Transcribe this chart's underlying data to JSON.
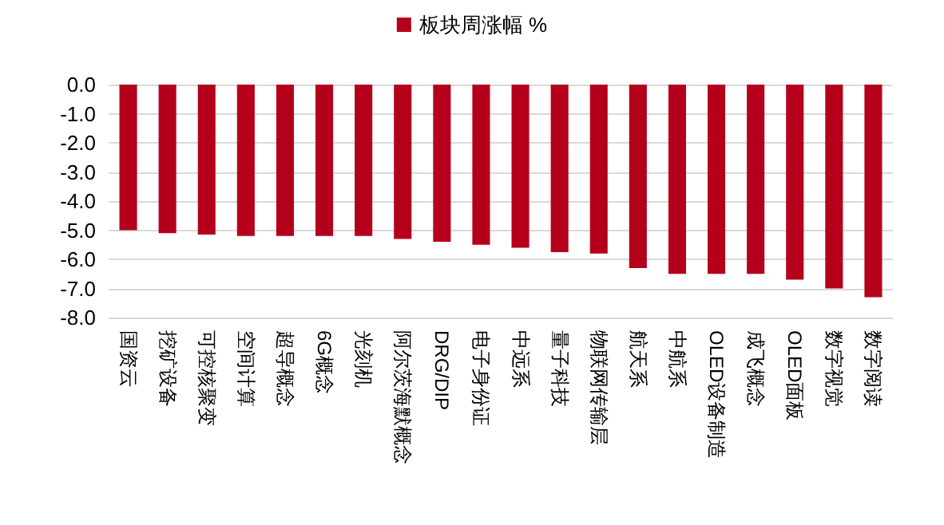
{
  "chart_data": {
    "type": "bar",
    "categories": [
      "国资云",
      "挖矿设备",
      "可控核聚变",
      "空间计算",
      "超导概念",
      "6G概念",
      "光刻机",
      "阿尔茨海默概念",
      "DRG/DIP",
      "电子身份证",
      "中远系",
      "量子科技",
      "物联网传输层",
      "航天系",
      "中航系",
      "OLED设备制造",
      "成飞概念",
      "OLED面板",
      "数字视觉",
      "数字阅读"
    ],
    "series": [
      {
        "name": "板块周涨幅 %",
        "color": "#b5001c",
        "values": [
          -5.0,
          -5.1,
          -5.15,
          -5.2,
          -5.2,
          -5.2,
          -5.2,
          -5.3,
          -5.4,
          -5.5,
          -5.6,
          -5.75,
          -5.8,
          -6.3,
          -6.5,
          -6.5,
          -6.5,
          -6.7,
          -7.0,
          -7.3
        ]
      }
    ],
    "ylim": [
      -8,
      0
    ],
    "yticks": [
      {
        "value": 0,
        "label": "0.0"
      },
      {
        "value": -1,
        "label": "-1.0"
      },
      {
        "value": -2,
        "label": "-2.0"
      },
      {
        "value": -3,
        "label": "-3.0"
      },
      {
        "value": -4,
        "label": "-4.0"
      },
      {
        "value": -5,
        "label": "-5.0"
      },
      {
        "value": -6,
        "label": "-6.0"
      },
      {
        "value": -7,
        "label": "-7.0"
      },
      {
        "value": -8,
        "label": "-8.0"
      }
    ],
    "grid": "y",
    "legend": "top"
  }
}
